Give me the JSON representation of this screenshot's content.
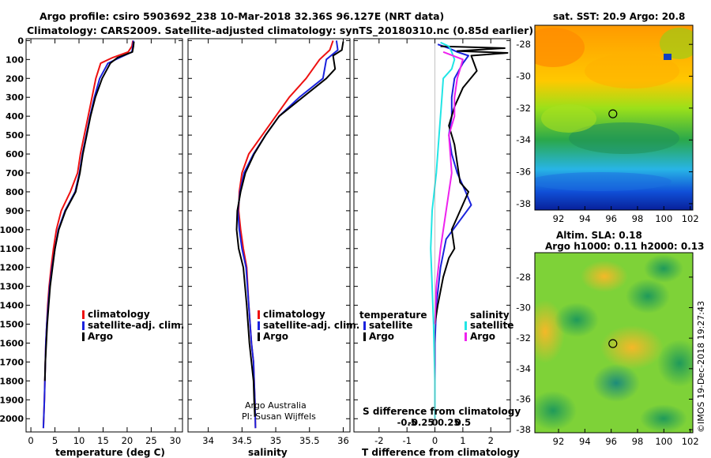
{
  "title_line1": "Argo profile: csiro 5903692_238 10-Mar-2018 32.36S 96.127E (NRT data)",
  "title_line2": "Climatology: CARS2009. Satellite-adjusted climatology: synTS_20180310.nc (0.85d earlier)",
  "colors": {
    "climatology": "#ee1111",
    "satellite": "#1a22dd",
    "argo": "#000000",
    "sat_sal": "#22e5e5",
    "argo_sal": "#ee22ee"
  },
  "chart_data": [
    {
      "type": "line",
      "name": "temperature-profile",
      "xlabel": "temperature (deg C)",
      "xlim": [
        -1,
        31.5
      ],
      "ylim": [
        2070,
        -10
      ],
      "xticks": [
        "0",
        "5",
        "10",
        "15",
        "20",
        "25",
        "30"
      ],
      "yticks": [
        "0",
        "100",
        "200",
        "300",
        "400",
        "500",
        "600",
        "700",
        "800",
        "900",
        "1000",
        "1100",
        "1200",
        "1300",
        "1400",
        "1500",
        "1600",
        "1700",
        "1800",
        "1900",
        "2000"
      ],
      "legend": [
        "climatology",
        "satellite-adj. clim.",
        "Argo"
      ],
      "series": [
        {
          "name": "climatology",
          "color": "#ee1111",
          "x": [
            21.2,
            21.0,
            20.2,
            17.0,
            14.5,
            13.5,
            12.7,
            11.9,
            11.1,
            10.3,
            9.7,
            8.2,
            6.3,
            5.3,
            4.7,
            4.2,
            3.8,
            3.5,
            3.3,
            3.1,
            3.0,
            2.9,
            2.8,
            2.6
          ],
          "y": [
            0,
            30,
            60,
            90,
            120,
            200,
            300,
            400,
            500,
            600,
            700,
            800,
            900,
            1000,
            1100,
            1200,
            1300,
            1400,
            1500,
            1600,
            1700,
            1800,
            1900,
            2050
          ]
        },
        {
          "name": "satellite-adj. clim.",
          "color": "#1a22dd",
          "x": [
            21.3,
            21.2,
            21.0,
            18.5,
            16.0,
            14.3,
            13.2,
            12.3,
            11.5,
            10.7,
            10.1,
            9.2,
            7.1,
            5.7,
            5.0,
            4.4,
            3.9,
            3.6,
            3.3,
            3.1,
            3.0,
            2.9,
            2.8,
            2.6
          ],
          "y": [
            0,
            30,
            60,
            90,
            120,
            200,
            300,
            400,
            500,
            600,
            700,
            800,
            900,
            1000,
            1100,
            1200,
            1300,
            1400,
            1500,
            1600,
            1700,
            1800,
            1900,
            2050
          ]
        },
        {
          "name": "Argo",
          "color": "#000000",
          "x": [
            21.4,
            21.3,
            21.1,
            18.0,
            16.5,
            14.8,
            13.4,
            12.4,
            11.6,
            10.8,
            10.2,
            9.3,
            7.2,
            5.8,
            5.0,
            4.5,
            4.0,
            3.7,
            3.4,
            3.2,
            3.0,
            2.9
          ],
          "y": [
            5,
            30,
            60,
            90,
            120,
            200,
            300,
            400,
            500,
            600,
            700,
            800,
            900,
            1000,
            1100,
            1200,
            1300,
            1400,
            1500,
            1600,
            1700,
            1800
          ]
        }
      ]
    },
    {
      "type": "line",
      "name": "salinity-profile",
      "xlabel": "salinity",
      "xlim": [
        33.7,
        36.1
      ],
      "ylim": [
        2070,
        -10
      ],
      "xticks": [
        "34",
        "34.5",
        "35",
        "35.5",
        "36"
      ],
      "legend": [
        "climatology",
        "satellite-adj. clim.",
        "Argo"
      ],
      "annotations": [
        "Argo Australia",
        "PI: Susan Wijffels"
      ],
      "series": [
        {
          "name": "climatology",
          "color": "#ee1111",
          "x": [
            35.85,
            35.8,
            35.65,
            35.45,
            35.2,
            35.0,
            34.8,
            34.6,
            34.5,
            34.46,
            34.45,
            34.48,
            34.52,
            34.57,
            34.6,
            34.64,
            34.67,
            34.68,
            34.69,
            34.7
          ],
          "y": [
            0,
            50,
            100,
            200,
            300,
            400,
            500,
            600,
            700,
            800,
            900,
            1000,
            1100,
            1200,
            1400,
            1600,
            1700,
            1800,
            1900,
            2050
          ]
        },
        {
          "name": "satellite-adj. clim.",
          "color": "#1a22dd",
          "x": [
            35.9,
            35.92,
            35.75,
            35.7,
            35.35,
            35.05,
            34.85,
            34.67,
            34.53,
            34.47,
            34.44,
            34.46,
            34.5,
            34.56,
            34.6,
            34.64,
            34.67,
            34.68,
            34.69,
            34.7
          ],
          "y": [
            0,
            50,
            100,
            200,
            300,
            400,
            500,
            600,
            700,
            800,
            900,
            1000,
            1100,
            1200,
            1400,
            1600,
            1700,
            1800,
            1900,
            2050
          ]
        },
        {
          "name": "Argo",
          "color": "#000000",
          "x": [
            36.0,
            35.98,
            35.85,
            35.88,
            35.75,
            35.4,
            35.05,
            34.85,
            34.68,
            34.55,
            34.48,
            34.43,
            34.42,
            34.45,
            34.52,
            34.57,
            34.61,
            34.64,
            34.67,
            34.68,
            34.69
          ],
          "y": [
            5,
            50,
            80,
            150,
            200,
            300,
            400,
            500,
            600,
            700,
            800,
            900,
            1000,
            1100,
            1200,
            1400,
            1600,
            1700,
            1800,
            1900,
            1990
          ]
        }
      ]
    },
    {
      "type": "line",
      "name": "difference-profile",
      "xlabel": "T difference from climatology",
      "x2label": "S difference from climatology",
      "xlim": [
        -2.9,
        2.7
      ],
      "ylim": [
        2070,
        -10
      ],
      "xticks": [
        "-2",
        "-1",
        "0",
        "1",
        "2"
      ],
      "x2ticks": [
        "-0.5",
        "-0.25",
        "0",
        "0.25",
        "0.5"
      ],
      "legend_temperature_title": "temperature",
      "legend_salinity_title": "salinity",
      "legend_temperature": [
        "satellite",
        "Argo"
      ],
      "legend_salinity": [
        "satellite",
        "Argo"
      ],
      "series": [
        {
          "name": "T satellite",
          "color": "#1a22dd",
          "x": [
            0.1,
            0.5,
            0.8,
            1.2,
            1.0,
            0.7,
            0.6,
            0.6,
            0.5,
            0.6,
            0.8,
            1.1,
            1.3,
            0.9,
            0.4,
            0.2,
            0.05,
            0.0,
            0.0,
            0.0
          ],
          "y": [
            20,
            40,
            60,
            80,
            120,
            200,
            300,
            400,
            500,
            600,
            700,
            800,
            870,
            950,
            1050,
            1200,
            1400,
            1600,
            1800,
            2000
          ]
        },
        {
          "name": "T Argo",
          "color": "#000000",
          "x": [
            0.2,
            2.5,
            0.8,
            2.6,
            1.3,
            1.5,
            1.0,
            0.7,
            0.5,
            0.7,
            0.8,
            0.9,
            1.2,
            0.9,
            0.6,
            0.7,
            0.5,
            0.3,
            0.1,
            0.0
          ],
          "y": [
            30,
            40,
            55,
            65,
            80,
            160,
            250,
            350,
            450,
            550,
            650,
            750,
            800,
            900,
            1000,
            1100,
            1150,
            1250,
            1400,
            1500
          ]
        },
        {
          "name": "S satellite",
          "color": "#22e5e5",
          "x": [
            0.2,
            0.5,
            0.6,
            0.7,
            0.6,
            0.3,
            0.25,
            0.2,
            0.15,
            0.05,
            -0.1,
            -0.15,
            -0.1,
            -0.05,
            0.0,
            0.0
          ],
          "y": [
            10,
            30,
            60,
            100,
            150,
            200,
            300,
            400,
            500,
            700,
            900,
            1100,
            1300,
            1500,
            1800,
            2000
          ]
        },
        {
          "name": "S Argo",
          "color": "#ee22ee",
          "x": [
            0.3,
            1.0,
            0.9,
            0.8,
            0.7,
            0.7,
            0.5,
            0.6,
            0.4,
            0.2,
            0.05,
            0.0
          ],
          "y": [
            60,
            100,
            150,
            200,
            300,
            400,
            500,
            700,
            900,
            1100,
            1300,
            1500
          ]
        }
      ]
    }
  ],
  "maps": {
    "sst_title": "sat. SST: 20.9 Argo: 20.8",
    "sla_title1": "Altim. SLA: 0.18",
    "sla_title2": "Argo h1000: 0.11 h2000: 0.13",
    "lon_ticks": [
      "92",
      "94",
      "96",
      "98",
      "100",
      "102"
    ],
    "lat_ticks_sst": [
      "-28",
      "-30",
      "-32",
      "-34",
      "-36",
      "-38"
    ],
    "lat_ticks_sla": [
      "-28",
      "-30",
      "-32",
      "-34",
      "-36",
      "-38"
    ],
    "xlim": [
      90.2,
      102.2
    ],
    "ylim_sst": [
      -38.4,
      -26.8
    ],
    "ylim_sla": [
      -38.2,
      -26.4
    ],
    "argo_position": {
      "lon": 96.127,
      "lat": -32.36
    }
  },
  "credit": "©IMOS 19-Dec-2018 19:27:43"
}
